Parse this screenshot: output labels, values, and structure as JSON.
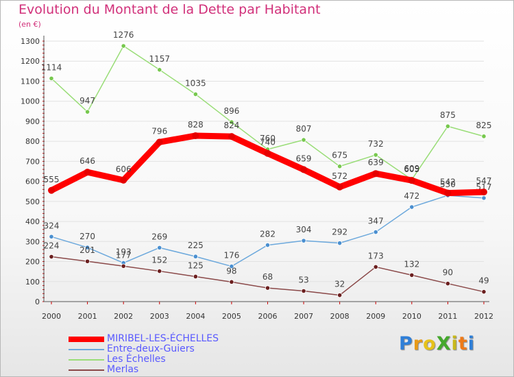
{
  "title": "Evolution du Montant de la Dette par Habitant",
  "subtitle": "(en €)",
  "logo": {
    "text": "ProXiti",
    "letters": [
      {
        "ch": "P",
        "color": "#2f7fd8"
      },
      {
        "ch": "r",
        "color": "#e89a18"
      },
      {
        "ch": "o",
        "color": "#e6c21a"
      },
      {
        "ch": "X",
        "color": "#44a82c"
      },
      {
        "ch": "i",
        "color": "#c8b81a"
      },
      {
        "ch": "t",
        "color": "#ee7a18"
      },
      {
        "ch": "i",
        "color": "#2f7fd8"
      }
    ]
  },
  "chart_data": {
    "type": "line",
    "title": "Evolution du Montant de la Dette par Habitant",
    "ylabel": "(en €)",
    "xlabel": "",
    "ylim": [
      0,
      1300
    ],
    "y_ticks": [
      0,
      100,
      200,
      300,
      400,
      500,
      600,
      700,
      800,
      900,
      1000,
      1100,
      1200,
      1300
    ],
    "x": [
      "2000",
      "2001",
      "2002",
      "2003",
      "2004",
      "2005",
      "2006",
      "2007",
      "2008",
      "2009",
      "2010",
      "2011",
      "2012"
    ],
    "grid": "horizontal",
    "legend_position": "bottom-left",
    "series": [
      {
        "name": "MIRIBEL-LES-ÉCHELLES",
        "color": "#ff0000",
        "marker": "#e60000",
        "thick": true,
        "values": [
          555,
          646,
          606,
          796,
          828,
          824,
          740,
          659,
          572,
          639,
          605,
          542,
          547
        ]
      },
      {
        "name": "Entre-deux-Guiers",
        "color": "#6ba8dc",
        "marker": "#4a8fd0",
        "thick": false,
        "values": [
          324,
          270,
          193,
          269,
          225,
          176,
          282,
          304,
          292,
          347,
          472,
          530,
          517
        ]
      },
      {
        "name": "Les Échelles",
        "color": "#99dd77",
        "marker": "#77c84e",
        "thick": false,
        "values": [
          1114,
          947,
          1276,
          1157,
          1035,
          896,
          760,
          807,
          675,
          732,
          609,
          875,
          825
        ]
      },
      {
        "name": "Merlas",
        "color": "#8a4848",
        "marker": "#6b1f1f",
        "thick": false,
        "values": [
          224,
          201,
          177,
          152,
          125,
          98,
          68,
          53,
          32,
          173,
          132,
          90,
          49
        ]
      }
    ]
  }
}
